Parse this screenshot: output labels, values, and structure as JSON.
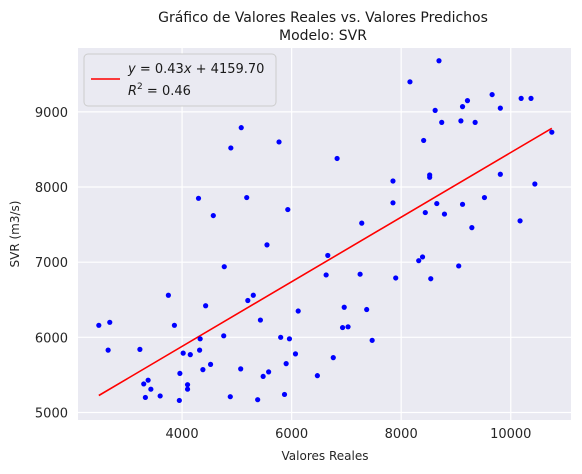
{
  "chart_data": {
    "type": "scatter",
    "title": "Gráfico de Valores Reales vs. Valores Predichos",
    "subtitle": "Modelo: SVR",
    "xlabel": "Valores Reales",
    "ylabel": "SVR (m3/s)",
    "xlim": [
      2100,
      11100
    ],
    "ylim": [
      4900,
      9850
    ],
    "x_ticks": [
      4000,
      6000,
      8000,
      10000
    ],
    "y_ticks": [
      5000,
      6000,
      7000,
      8000,
      9000
    ],
    "x_tick_labels": [
      "4000",
      "6000",
      "8000",
      "10000"
    ],
    "y_tick_labels": [
      "5000",
      "6000",
      "7000",
      "8000",
      "9000"
    ],
    "grid": true,
    "legend_position": "top-left",
    "point_color": "#0000ff",
    "line_color": "#ff0000",
    "series": [
      {
        "kind": "points",
        "points": [
          [
            2480,
            6160
          ],
          [
            2680,
            6200
          ],
          [
            2650,
            5830
          ],
          [
            3230,
            5840
          ],
          [
            3300,
            5380
          ],
          [
            3330,
            5200
          ],
          [
            3380,
            5430
          ],
          [
            3430,
            5310
          ],
          [
            3600,
            5220
          ],
          [
            3750,
            6560
          ],
          [
            3860,
            6160
          ],
          [
            3950,
            5160
          ],
          [
            3960,
            5520
          ],
          [
            4020,
            5790
          ],
          [
            4100,
            5370
          ],
          [
            4100,
            5310
          ],
          [
            4150,
            5770
          ],
          [
            4300,
            7850
          ],
          [
            4320,
            5830
          ],
          [
            4330,
            5980
          ],
          [
            4380,
            5570
          ],
          [
            4430,
            6420
          ],
          [
            4520,
            5640
          ],
          [
            4570,
            7620
          ],
          [
            4770,
            6940
          ],
          [
            4760,
            6020
          ],
          [
            4880,
            5210
          ],
          [
            4890,
            8520
          ],
          [
            5070,
            5580
          ],
          [
            5080,
            8790
          ],
          [
            5180,
            7860
          ],
          [
            5200,
            6490
          ],
          [
            5300,
            6560
          ],
          [
            5380,
            5170
          ],
          [
            5430,
            6230
          ],
          [
            5480,
            5480
          ],
          [
            5550,
            7230
          ],
          [
            5580,
            5540
          ],
          [
            5770,
            8600
          ],
          [
            5800,
            6000
          ],
          [
            5870,
            5240
          ],
          [
            5900,
            5650
          ],
          [
            5930,
            7700
          ],
          [
            5960,
            5980
          ],
          [
            6070,
            5780
          ],
          [
            6120,
            6350
          ],
          [
            6470,
            5490
          ],
          [
            6630,
            6830
          ],
          [
            6660,
            7090
          ],
          [
            6760,
            5730
          ],
          [
            6830,
            8380
          ],
          [
            6930,
            6130
          ],
          [
            6960,
            6400
          ],
          [
            7030,
            6140
          ],
          [
            7250,
            6840
          ],
          [
            7280,
            7520
          ],
          [
            7370,
            6370
          ],
          [
            7470,
            5960
          ],
          [
            7850,
            7790
          ],
          [
            7850,
            8080
          ],
          [
            7900,
            6790
          ],
          [
            8160,
            9400
          ],
          [
            8320,
            7020
          ],
          [
            8390,
            7070
          ],
          [
            8410,
            8620
          ],
          [
            8440,
            7660
          ],
          [
            8520,
            8130
          ],
          [
            8520,
            8160
          ],
          [
            8540,
            6780
          ],
          [
            8620,
            9020
          ],
          [
            8650,
            7780
          ],
          [
            8690,
            9680
          ],
          [
            8740,
            8860
          ],
          [
            8790,
            7640
          ],
          [
            9050,
            6950
          ],
          [
            9090,
            8880
          ],
          [
            9120,
            9070
          ],
          [
            9120,
            7770
          ],
          [
            9210,
            9150
          ],
          [
            9290,
            7460
          ],
          [
            9350,
            8860
          ],
          [
            9520,
            7860
          ],
          [
            9660,
            9230
          ],
          [
            9810,
            8170
          ],
          [
            9810,
            9050
          ],
          [
            10170,
            7550
          ],
          [
            10190,
            9180
          ],
          [
            10370,
            9180
          ],
          [
            10440,
            8040
          ],
          [
            10750,
            8730
          ]
        ]
      },
      {
        "kind": "regression-line",
        "x": [
          2480,
          10750
        ],
        "y": [
          5226,
          8782
        ]
      }
    ],
    "legend": {
      "equation_lhs": "y",
      "equation_rhs_a": " = 0.43",
      "equation_var": "x",
      "equation_rhs_b": " + 4159.70",
      "r2_base": "R",
      "r2_exp": "2",
      "r2_rest": " = 0.46"
    }
  }
}
